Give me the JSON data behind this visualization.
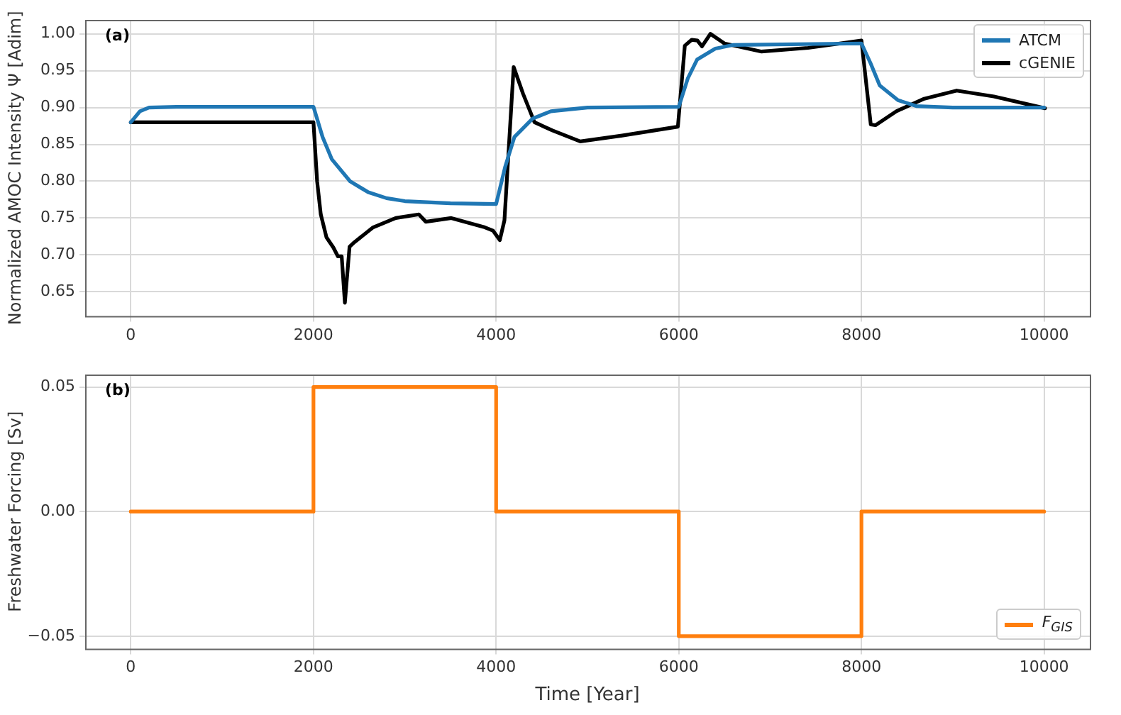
{
  "chart_data": [
    {
      "type": "line",
      "ylabel": "Normalized AMOC Intensity Ψ [Adim]",
      "annotations": [
        "(a)"
      ],
      "xlim": [
        -500,
        10500
      ],
      "xticks": [
        0,
        2000,
        4000,
        6000,
        8000,
        10000
      ],
      "ylim": [
        0.617,
        1.019
      ],
      "yticks": [
        {
          "value": 0.65,
          "label": "0.65"
        },
        {
          "value": 0.7,
          "label": "0.70"
        },
        {
          "value": 0.75,
          "label": "0.75"
        },
        {
          "value": 0.8,
          "label": "0.80"
        },
        {
          "value": 0.85,
          "label": "0.85"
        },
        {
          "value": 0.9,
          "label": "0.90"
        },
        {
          "value": 0.95,
          "label": "0.95"
        },
        {
          "value": 1.0,
          "label": "1.00"
        }
      ],
      "grid": true,
      "legend": "top right",
      "series": [
        {
          "name": "ATCM",
          "color": "#1f77b4",
          "x": [
            0,
            100,
            200,
            500,
            2000,
            2100,
            2200,
            2400,
            2600,
            2800,
            3000,
            3500,
            4000,
            4100,
            4200,
            4400,
            4600,
            5000,
            6000,
            6100,
            6200,
            6400,
            6600,
            8000,
            8100,
            8200,
            8400,
            8600,
            9000,
            10000
          ],
          "values": [
            0.88,
            0.895,
            0.9,
            0.901,
            0.901,
            0.86,
            0.83,
            0.8,
            0.785,
            0.777,
            0.773,
            0.77,
            0.769,
            0.82,
            0.86,
            0.885,
            0.895,
            0.9,
            0.901,
            0.94,
            0.965,
            0.98,
            0.985,
            0.987,
            0.96,
            0.93,
            0.91,
            0.902,
            0.9,
            0.9
          ]
        },
        {
          "name": "cGENIE",
          "color": "#000000",
          "x": [
            0,
            2000,
            2040,
            2080,
            2142,
            2218,
            2268,
            2309,
            2344,
            2395,
            2446,
            2648,
            2901,
            3154,
            3230,
            3509,
            3863,
            3965,
            4040,
            4091,
            4192,
            4294,
            4420,
            4616,
            4921,
            5379,
            5990,
            6066,
            6142,
            6204,
            6254,
            6346,
            6499,
            6906,
            7415,
            8000,
            8102,
            8153,
            8382,
            8687,
            9043,
            9450,
            10010
          ],
          "values": [
            0.88,
            0.88,
            0.8,
            0.755,
            0.724,
            0.71,
            0.698,
            0.698,
            0.635,
            0.711,
            0.717,
            0.737,
            0.75,
            0.755,
            0.745,
            0.75,
            0.738,
            0.733,
            0.72,
            0.747,
            0.955,
            0.919,
            0.88,
            0.869,
            0.854,
            0.862,
            0.874,
            0.984,
            0.992,
            0.991,
            0.983,
            1.0,
            0.987,
            0.976,
            0.981,
            0.991,
            0.877,
            0.876,
            0.895,
            0.912,
            0.923,
            0.915,
            0.899
          ]
        }
      ]
    },
    {
      "type": "step",
      "xlabel": "Time [Year]",
      "ylabel": "Freshwater Forcing [Sv]",
      "annotations": [
        "(b)"
      ],
      "xlim": [
        -500,
        10500
      ],
      "xticks": [
        0,
        2000,
        4000,
        6000,
        8000,
        10000
      ],
      "ylim": [
        -0.055,
        0.055
      ],
      "yticks": [
        {
          "value": -0.05,
          "label": "−0.05"
        },
        {
          "value": 0,
          "label": "0.00"
        },
        {
          "value": 0.05,
          "label": "0.05"
        }
      ],
      "grid": true,
      "legend": "bottom right",
      "series": [
        {
          "name": "F$_{GIS}$",
          "color": "#ff7f0e",
          "x": [
            0,
            2000,
            4000,
            6000,
            8000,
            10000
          ],
          "values": [
            0,
            0.05,
            0,
            -0.05,
            0,
            0
          ]
        }
      ]
    }
  ]
}
